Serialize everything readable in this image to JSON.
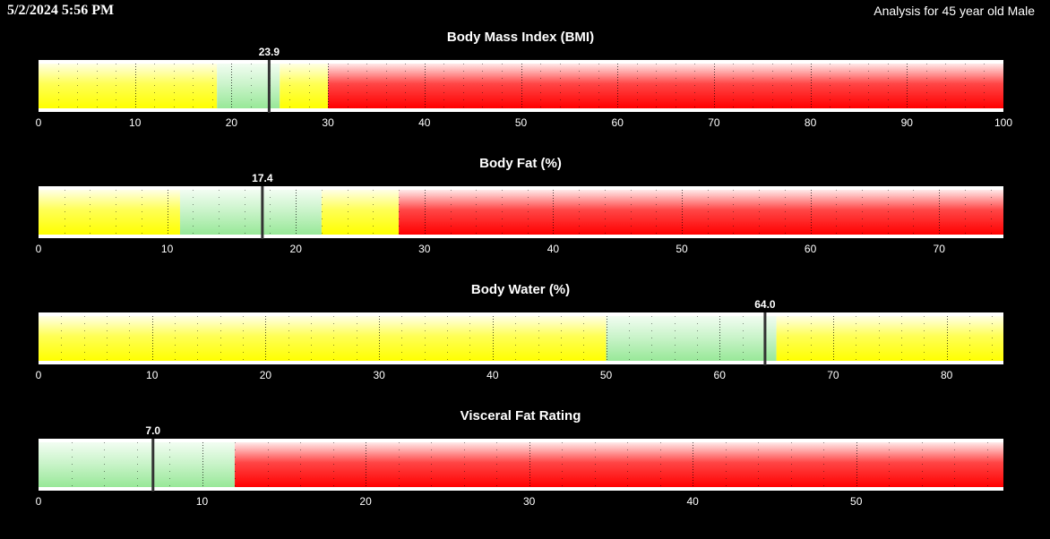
{
  "header": {
    "timestamp": "5/2/2024 5:56 PM",
    "analysis": "Analysis for 45 year old Male"
  },
  "colors": {
    "yellow": "#ffff33",
    "green": "#a8eea8",
    "red": "#ff2b2b",
    "marker": "#333333"
  },
  "chart_data": [
    {
      "type": "bar",
      "title": "Body Mass Index (BMI)",
      "xlim": [
        0,
        100
      ],
      "ticks": [
        0,
        10,
        20,
        30,
        40,
        50,
        60,
        70,
        80,
        90,
        100
      ],
      "minor_step": 2,
      "value": 23.9,
      "value_label": "23.9",
      "segments": [
        {
          "from": 0,
          "to": 18.5,
          "zone": "yellow"
        },
        {
          "from": 18.5,
          "to": 25,
          "zone": "green"
        },
        {
          "from": 25,
          "to": 30,
          "zone": "yellow"
        },
        {
          "from": 30,
          "to": 100,
          "zone": "red"
        }
      ],
      "grid": true
    },
    {
      "type": "bar",
      "title": "Body Fat (%)",
      "xlim": [
        0,
        75
      ],
      "ticks": [
        0,
        10,
        20,
        30,
        40,
        50,
        60,
        70
      ],
      "minor_step": 2,
      "value": 17.4,
      "value_label": "17.4",
      "segments": [
        {
          "from": 0,
          "to": 11,
          "zone": "yellow"
        },
        {
          "from": 11,
          "to": 22,
          "zone": "green"
        },
        {
          "from": 22,
          "to": 28,
          "zone": "yellow"
        },
        {
          "from": 28,
          "to": 75,
          "zone": "red"
        }
      ],
      "grid": true
    },
    {
      "type": "bar",
      "title": "Body Water (%)",
      "xlim": [
        0,
        85
      ],
      "ticks": [
        0,
        10,
        20,
        30,
        40,
        50,
        60,
        70,
        80
      ],
      "minor_step": 2,
      "value": 64.0,
      "value_label": "64.0",
      "segments": [
        {
          "from": 0,
          "to": 50,
          "zone": "yellow"
        },
        {
          "from": 50,
          "to": 65,
          "zone": "green"
        },
        {
          "from": 65,
          "to": 85,
          "zone": "yellow"
        }
      ],
      "grid": true
    },
    {
      "type": "bar",
      "title": "Visceral Fat Rating",
      "xlim": [
        0,
        59
      ],
      "ticks": [
        0,
        10,
        20,
        30,
        40,
        50
      ],
      "minor_step": 2,
      "value": 7.0,
      "value_label": "7.0",
      "segments": [
        {
          "from": 0,
          "to": 12,
          "zone": "green"
        },
        {
          "from": 12,
          "to": 59,
          "zone": "red"
        }
      ],
      "grid": true
    }
  ]
}
